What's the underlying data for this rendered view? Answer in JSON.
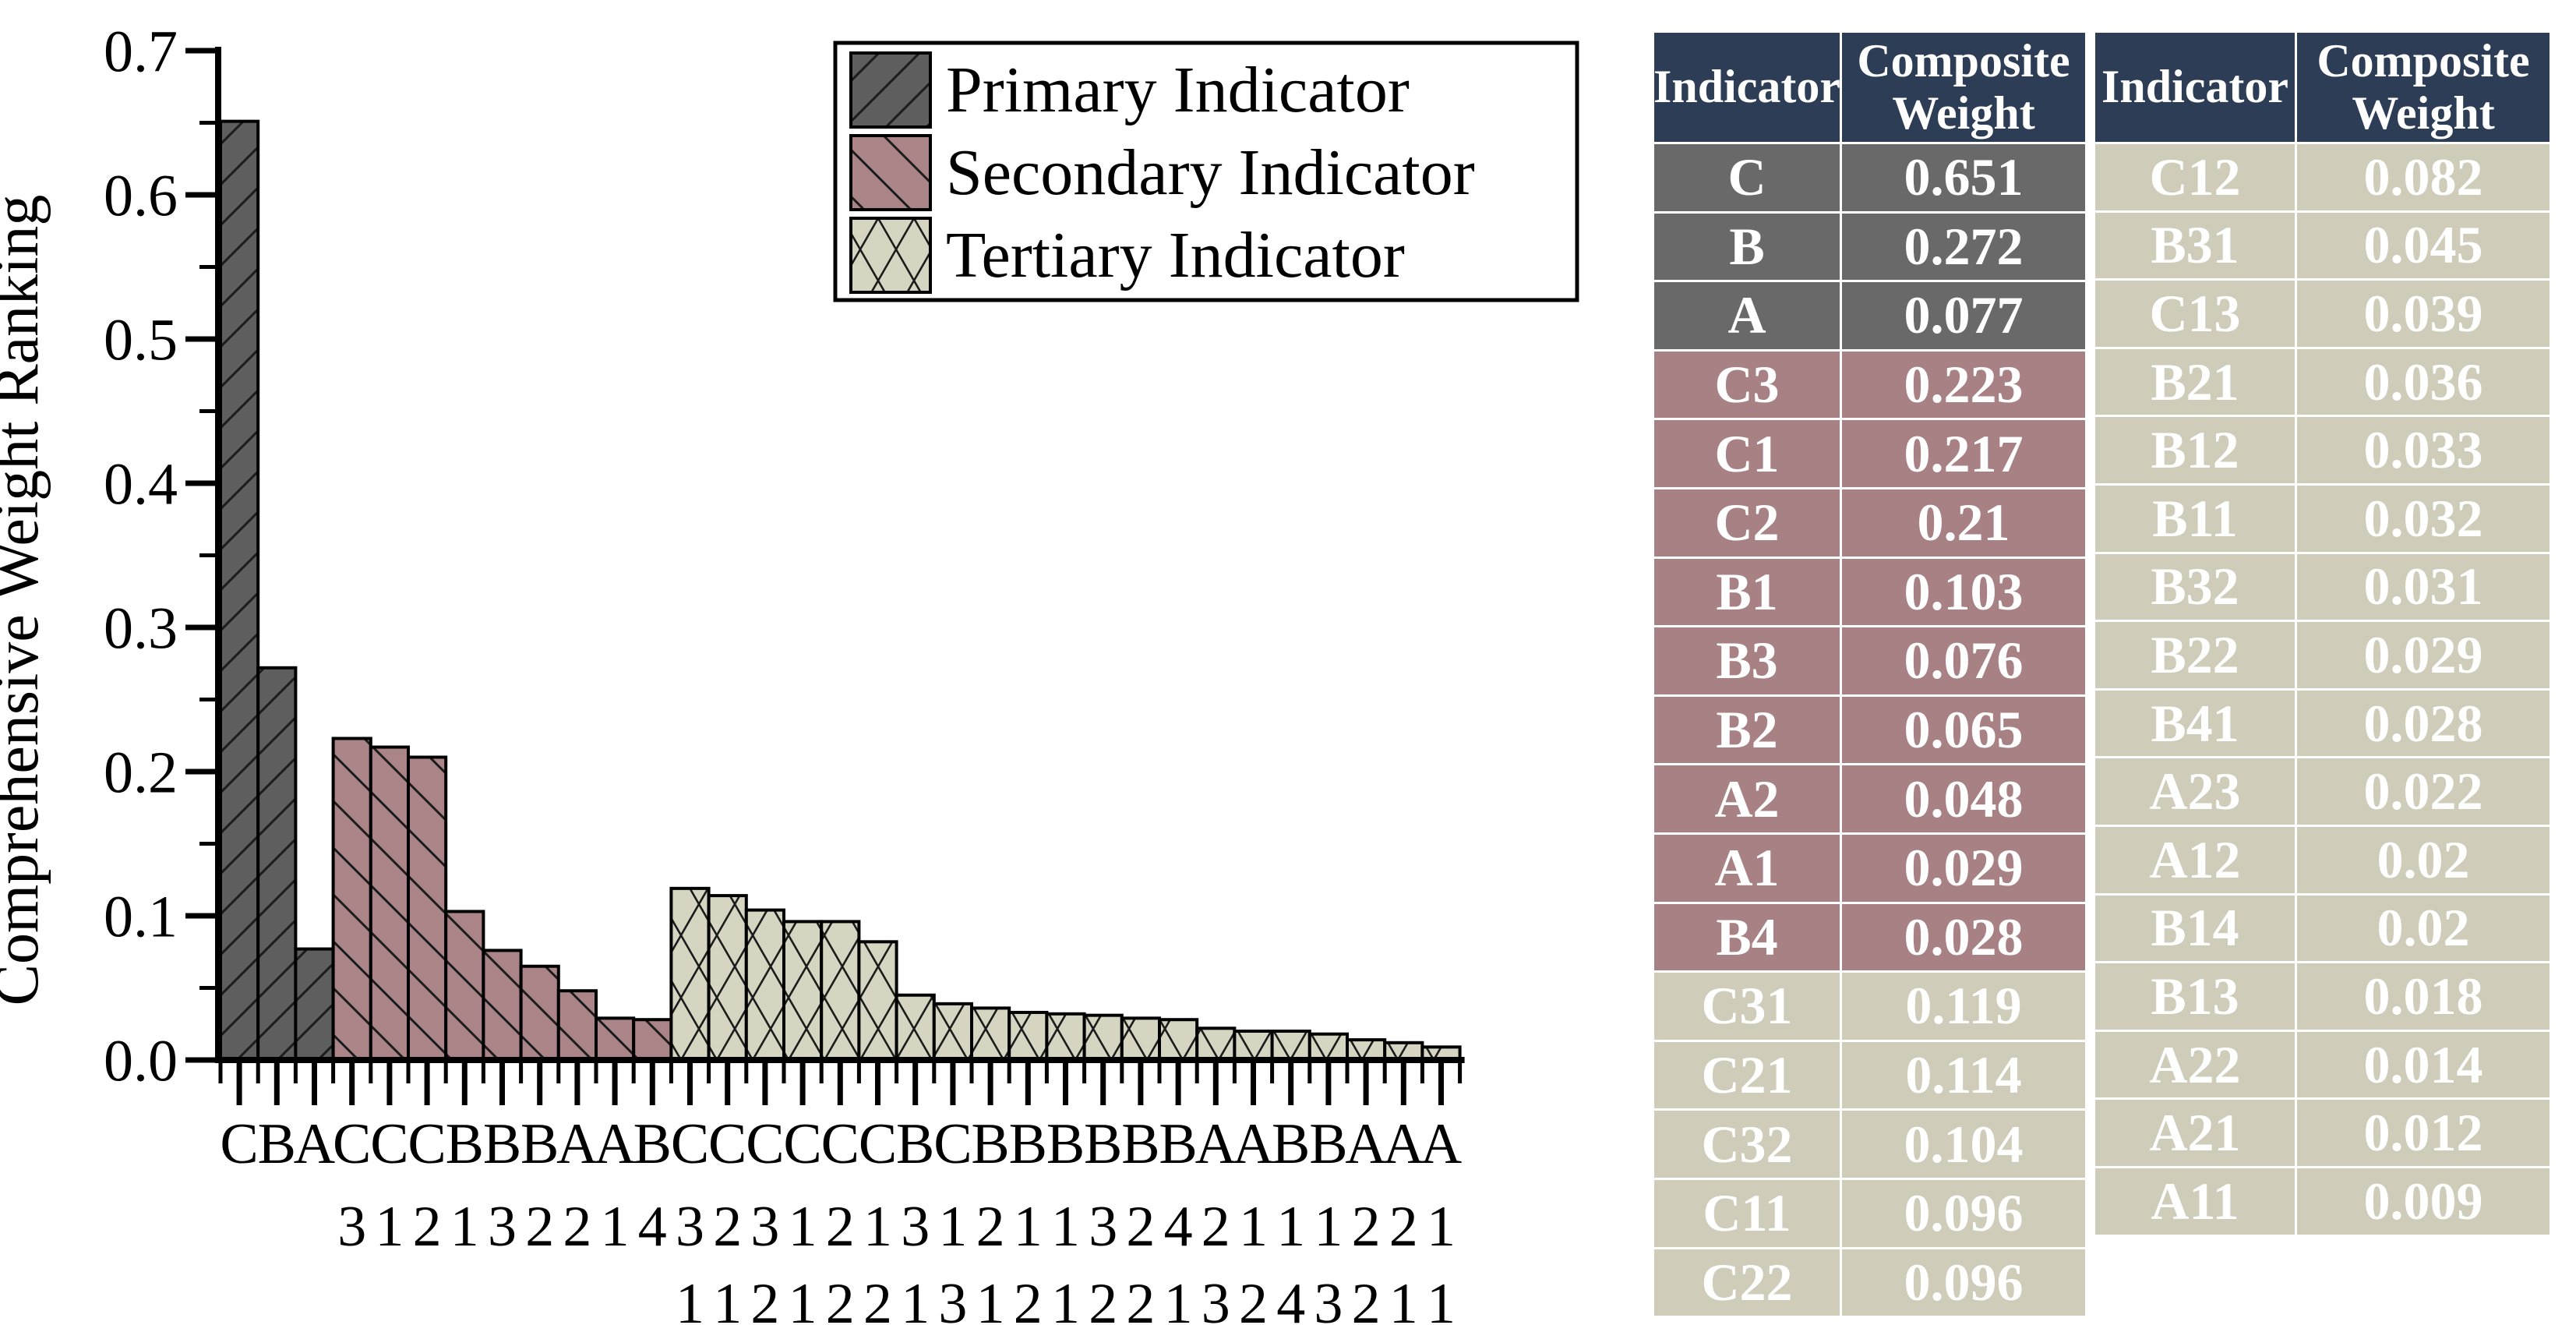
{
  "chart_data": {
    "type": "bar",
    "title": "",
    "xlabel": "",
    "ylabel": "Comprehensive Weight Ranking",
    "ylim": [
      0,
      0.7
    ],
    "ytick_step": 0.1,
    "yminor_step": 0.05,
    "grid": false,
    "legend_position": "top-right-inside",
    "legend": [
      {
        "label": "Primary Indicator",
        "group": "primary"
      },
      {
        "label": "Secondary Indicator",
        "group": "secondary"
      },
      {
        "label": "Tertiary Indicator",
        "group": "tertiary"
      }
    ],
    "colors": {
      "primary": "#5e5e5e",
      "secondary": "#ab8487",
      "tertiary": "#d6d5c1",
      "hatch": "#1c1c1c",
      "axis": "#000000"
    },
    "bars": [
      {
        "label": "C",
        "value": 0.651,
        "group": "primary"
      },
      {
        "label": "B",
        "value": 0.272,
        "group": "primary"
      },
      {
        "label": "A",
        "value": 0.077,
        "group": "primary"
      },
      {
        "label": "C3",
        "value": 0.223,
        "group": "secondary"
      },
      {
        "label": "C1",
        "value": 0.217,
        "group": "secondary"
      },
      {
        "label": "C2",
        "value": 0.21,
        "group": "secondary"
      },
      {
        "label": "B1",
        "value": 0.103,
        "group": "secondary"
      },
      {
        "label": "B3",
        "value": 0.076,
        "group": "secondary"
      },
      {
        "label": "B2",
        "value": 0.065,
        "group": "secondary"
      },
      {
        "label": "A2",
        "value": 0.048,
        "group": "secondary"
      },
      {
        "label": "A1",
        "value": 0.029,
        "group": "secondary"
      },
      {
        "label": "B4",
        "value": 0.028,
        "group": "secondary"
      },
      {
        "label": "C31",
        "value": 0.119,
        "group": "tertiary"
      },
      {
        "label": "C21",
        "value": 0.114,
        "group": "tertiary"
      },
      {
        "label": "C32",
        "value": 0.104,
        "group": "tertiary"
      },
      {
        "label": "C11",
        "value": 0.096,
        "group": "tertiary"
      },
      {
        "label": "C22",
        "value": 0.096,
        "group": "tertiary"
      },
      {
        "label": "C12",
        "value": 0.082,
        "group": "tertiary"
      },
      {
        "label": "B31",
        "value": 0.045,
        "group": "tertiary"
      },
      {
        "label": "C13",
        "value": 0.039,
        "group": "tertiary"
      },
      {
        "label": "B21",
        "value": 0.036,
        "group": "tertiary"
      },
      {
        "label": "B12",
        "value": 0.033,
        "group": "tertiary"
      },
      {
        "label": "B11",
        "value": 0.032,
        "group": "tertiary"
      },
      {
        "label": "B32",
        "value": 0.031,
        "group": "tertiary"
      },
      {
        "label": "B22",
        "value": 0.029,
        "group": "tertiary"
      },
      {
        "label": "B41",
        "value": 0.028,
        "group": "tertiary"
      },
      {
        "label": "A23",
        "value": 0.022,
        "group": "tertiary"
      },
      {
        "label": "A12",
        "value": 0.02,
        "group": "tertiary"
      },
      {
        "label": "B14",
        "value": 0.02,
        "group": "tertiary"
      },
      {
        "label": "B13",
        "value": 0.018,
        "group": "tertiary"
      },
      {
        "label": "A22",
        "value": 0.014,
        "group": "tertiary"
      },
      {
        "label": "A21",
        "value": 0.012,
        "group": "tertiary"
      },
      {
        "label": "A11",
        "value": 0.009,
        "group": "tertiary"
      }
    ]
  },
  "tables": [
    {
      "headers": [
        "Indicator",
        "Composite Weight"
      ],
      "rows": [
        {
          "indicator": "C",
          "weight": "0.651",
          "group": "primary"
        },
        {
          "indicator": "B",
          "weight": "0.272",
          "group": "primary"
        },
        {
          "indicator": "A",
          "weight": "0.077",
          "group": "primary"
        },
        {
          "indicator": "C3",
          "weight": "0.223",
          "group": "secondary"
        },
        {
          "indicator": "C1",
          "weight": "0.217",
          "group": "secondary"
        },
        {
          "indicator": "C2",
          "weight": "0.21",
          "group": "secondary"
        },
        {
          "indicator": "B1",
          "weight": "0.103",
          "group": "secondary"
        },
        {
          "indicator": "B3",
          "weight": "0.076",
          "group": "secondary"
        },
        {
          "indicator": "B2",
          "weight": "0.065",
          "group": "secondary"
        },
        {
          "indicator": "A2",
          "weight": "0.048",
          "group": "secondary"
        },
        {
          "indicator": "A1",
          "weight": "0.029",
          "group": "secondary"
        },
        {
          "indicator": "B4",
          "weight": "0.028",
          "group": "secondary"
        },
        {
          "indicator": "C31",
          "weight": "0.119",
          "group": "tertiary"
        },
        {
          "indicator": "C21",
          "weight": "0.114",
          "group": "tertiary"
        },
        {
          "indicator": "C32",
          "weight": "0.104",
          "group": "tertiary"
        },
        {
          "indicator": "C11",
          "weight": "0.096",
          "group": "tertiary"
        },
        {
          "indicator": "C22",
          "weight": "0.096",
          "group": "tertiary"
        }
      ]
    },
    {
      "headers": [
        "Indicator",
        "Composite Weight"
      ],
      "rows": [
        {
          "indicator": "C12",
          "weight": "0.082",
          "group": "tertiary"
        },
        {
          "indicator": "B31",
          "weight": "0.045",
          "group": "tertiary"
        },
        {
          "indicator": "C13",
          "weight": "0.039",
          "group": "tertiary"
        },
        {
          "indicator": "B21",
          "weight": "0.036",
          "group": "tertiary"
        },
        {
          "indicator": "B12",
          "weight": "0.033",
          "group": "tertiary"
        },
        {
          "indicator": "B11",
          "weight": "0.032",
          "group": "tertiary"
        },
        {
          "indicator": "B32",
          "weight": "0.031",
          "group": "tertiary"
        },
        {
          "indicator": "B22",
          "weight": "0.029",
          "group": "tertiary"
        },
        {
          "indicator": "B41",
          "weight": "0.028",
          "group": "tertiary"
        },
        {
          "indicator": "A23",
          "weight": "0.022",
          "group": "tertiary"
        },
        {
          "indicator": "A12",
          "weight": "0.02",
          "group": "tertiary"
        },
        {
          "indicator": "B14",
          "weight": "0.02",
          "group": "tertiary"
        },
        {
          "indicator": "B13",
          "weight": "0.018",
          "group": "tertiary"
        },
        {
          "indicator": "A22",
          "weight": "0.014",
          "group": "tertiary"
        },
        {
          "indicator": "A21",
          "weight": "0.012",
          "group": "tertiary"
        },
        {
          "indicator": "A11",
          "weight": "0.009",
          "group": "tertiary"
        }
      ]
    }
  ],
  "table_colors": {
    "header_bg": "#2c3d55",
    "primary_row": "#696969",
    "secondary_row": "#a88184",
    "tertiary_row": "#cfcdb9",
    "text": "#ffffff"
  }
}
